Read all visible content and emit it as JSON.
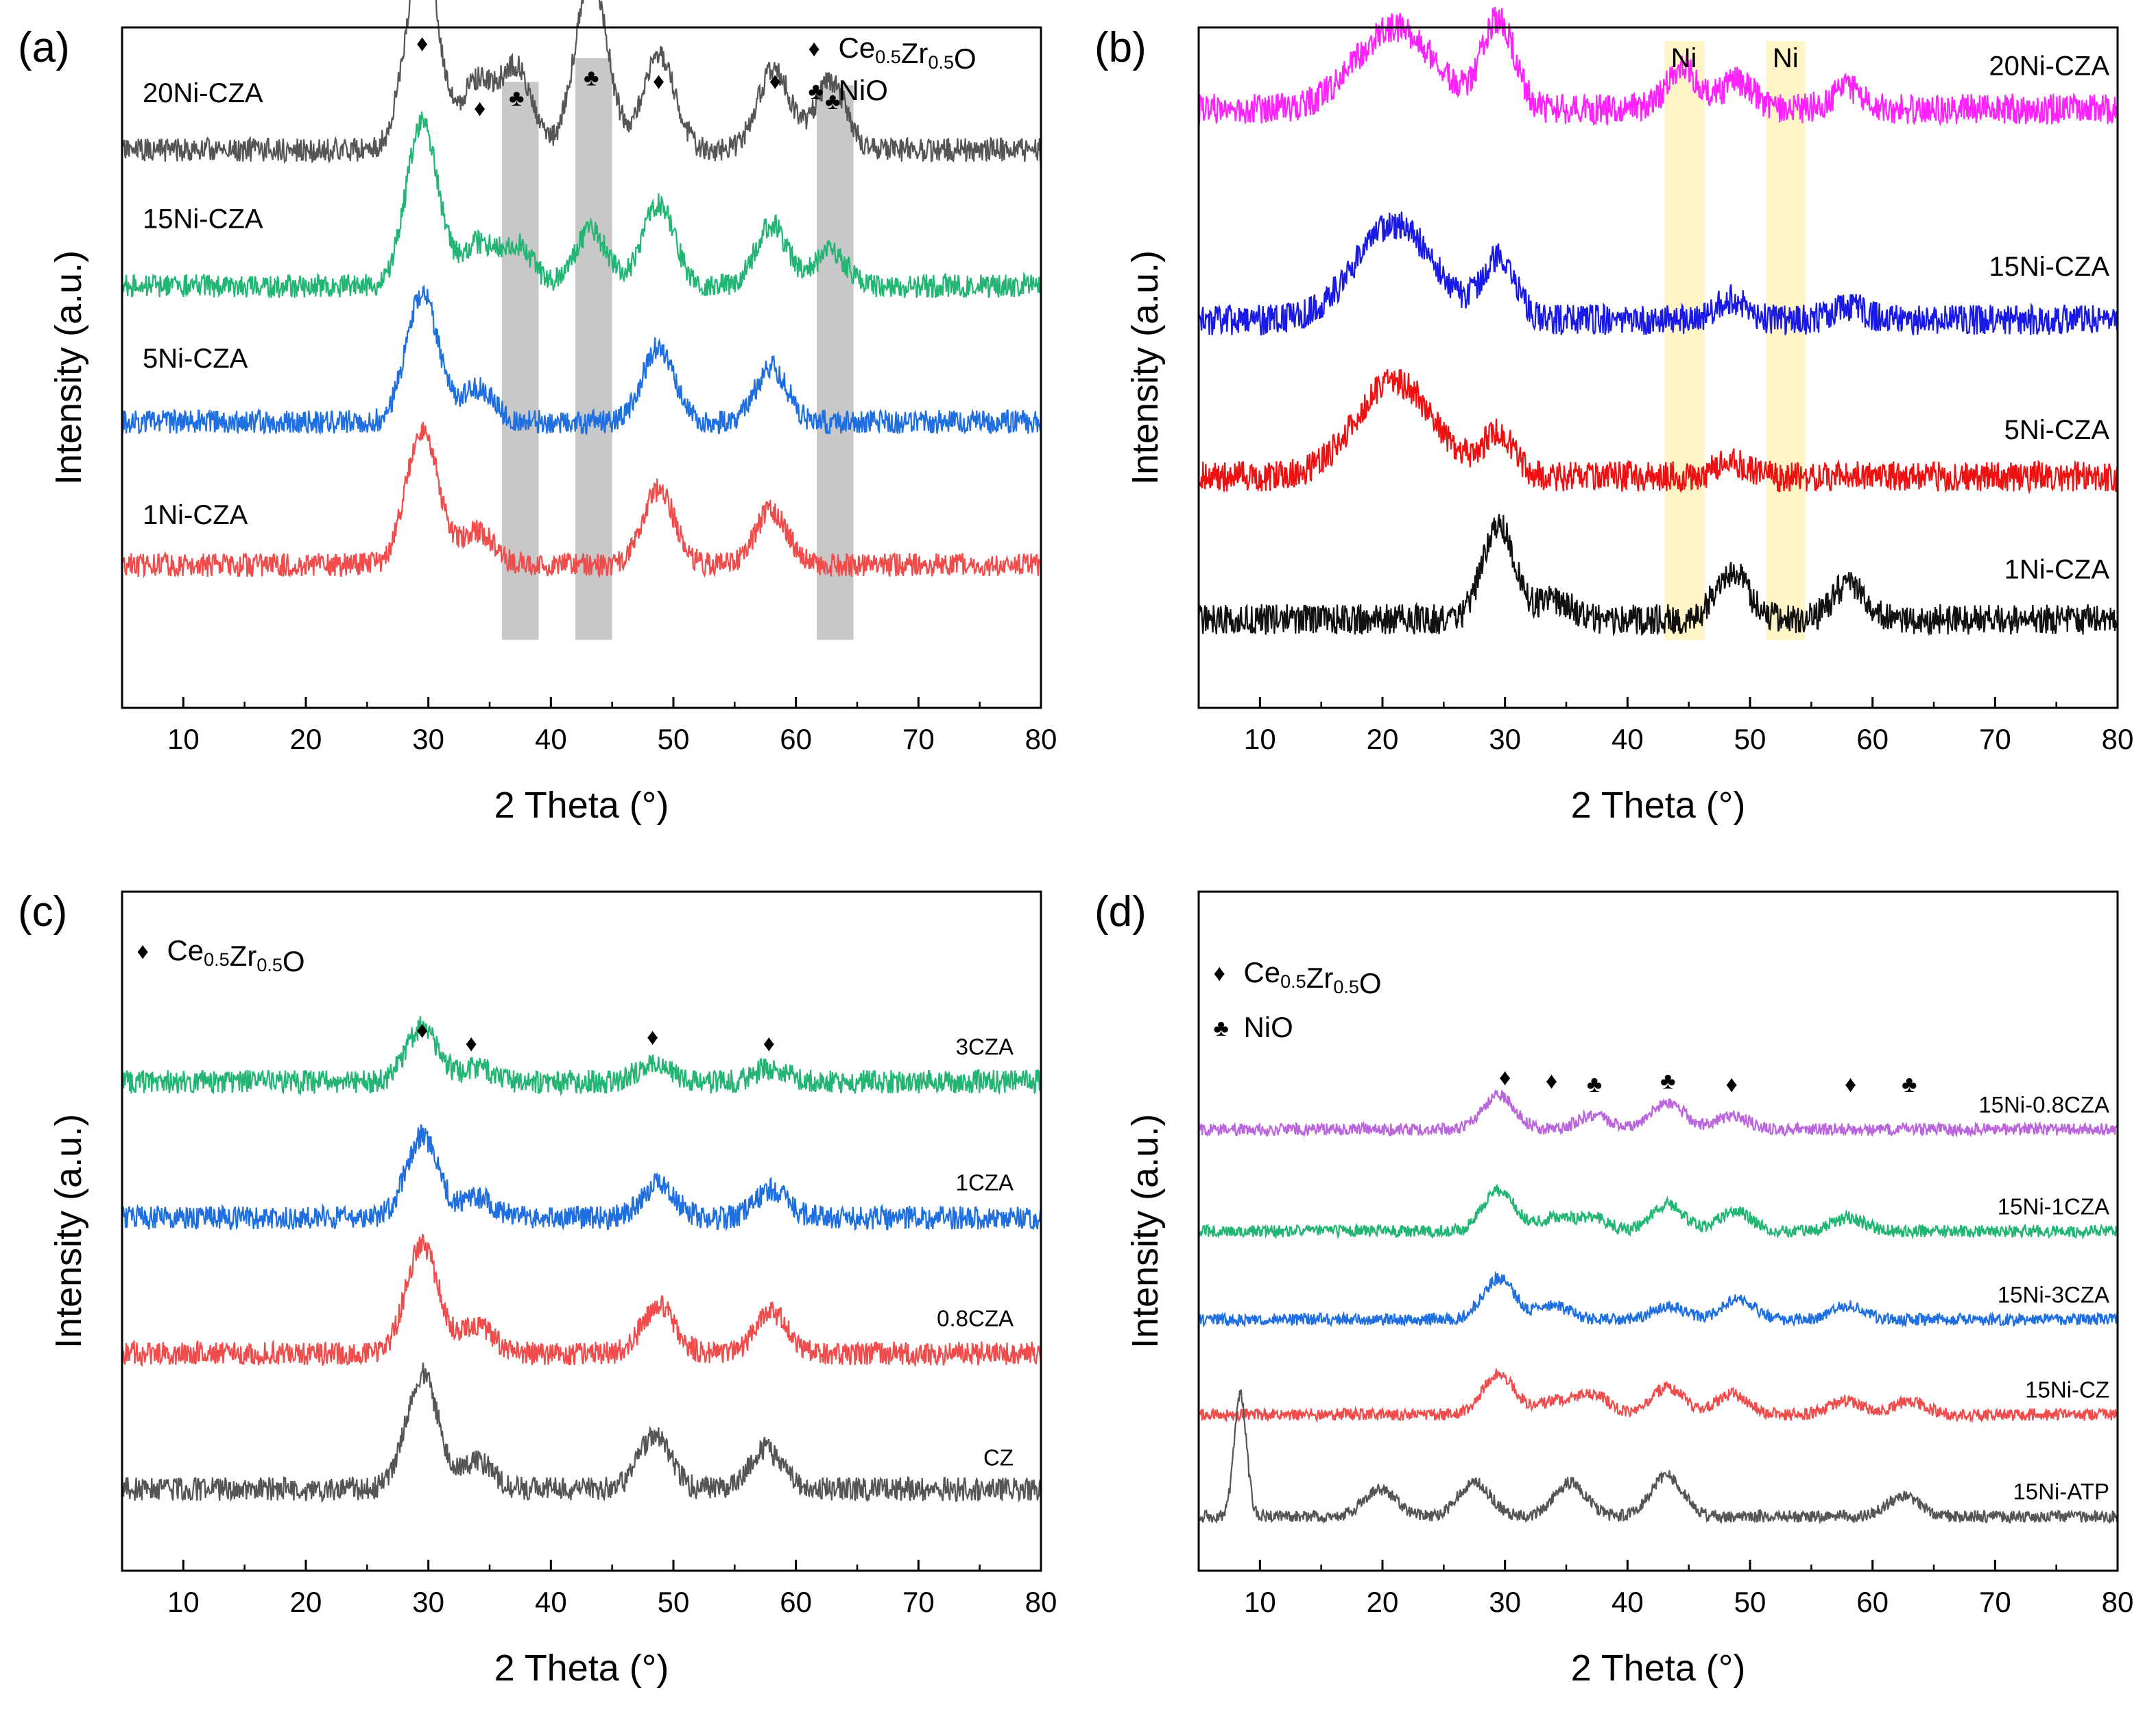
{
  "chart_data": [
    {
      "panel_label": "(a)",
      "type": "line",
      "xlabel": "2 Theta (°)",
      "ylabel": "Intensity (a.u.)",
      "xlim": [
        5,
        80
      ],
      "xticks": [
        "10",
        "20",
        "30",
        "40",
        "50",
        "60",
        "70",
        "80"
      ],
      "colors": {
        "20Ni-CZA": "#555555",
        "15Ni-CZA": "#22b573",
        "5Ni-CZA": "#1f6fe0",
        "1Ni-CZA": "#f04c4c"
      },
      "series": [
        {
          "name": "20Ni-CZA",
          "baseline": 0.18,
          "peaks": [
            [
              29.5,
              0.3
            ],
            [
              34,
              0.1
            ],
            [
              37.2,
              0.12
            ],
            [
              43.3,
              0.26
            ],
            [
              48.8,
              0.14
            ],
            [
              58.2,
              0.12
            ],
            [
              62.8,
              0.1
            ]
          ]
        },
        {
          "name": "15Ni-CZA",
          "baseline": 0.38,
          "peaks": [
            [
              29.5,
              0.24
            ],
            [
              34,
              0.06
            ],
            [
              37.2,
              0.06
            ],
            [
              43.3,
              0.08
            ],
            [
              48.8,
              0.12
            ],
            [
              58,
              0.09
            ],
            [
              62.8,
              0.05
            ]
          ]
        },
        {
          "name": "5Ni-CZA",
          "baseline": 0.58,
          "peaks": [
            [
              29.5,
              0.19
            ],
            [
              34,
              0.05
            ],
            [
              48.8,
              0.11
            ],
            [
              58,
              0.08
            ]
          ]
        },
        {
          "name": "1Ni-CZA",
          "baseline": 0.79,
          "peaks": [
            [
              29.5,
              0.2
            ],
            [
              34,
              0.05
            ],
            [
              48.8,
              0.11
            ],
            [
              58,
              0.08
            ]
          ]
        }
      ],
      "shaded_regions": [
        [
          36,
          39
        ],
        [
          42,
          45
        ],
        [
          61.7,
          64.7
        ]
      ],
      "legend": [
        {
          "symbol": "♦",
          "label_main": "Ce",
          "sub1": "0.5",
          "label_mid": "Zr",
          "sub2": "0.5",
          "label_end": "O"
        },
        {
          "symbol": "♣",
          "label": "NiO"
        }
      ],
      "markers": [
        {
          "symbol": "♦",
          "x": 29.5
        },
        {
          "symbol": "♦",
          "x": 34.2
        },
        {
          "symbol": "♣",
          "x": 37.2
        },
        {
          "symbol": "♣",
          "x": 43.3
        },
        {
          "symbol": "♦",
          "x": 48.8
        },
        {
          "symbol": "♦",
          "x": 58.3
        },
        {
          "symbol": "♣",
          "x": 63
        }
      ]
    },
    {
      "panel_label": "(b)",
      "type": "line",
      "xlabel": "2 Theta (°)",
      "ylabel": "Intensity (a.u.)",
      "xlim": [
        5,
        80
      ],
      "xticks": [
        "10",
        "20",
        "30",
        "40",
        "50",
        "60",
        "70",
        "80"
      ],
      "colors": {
        "20Ni-CZA": "#ff22ff",
        "15Ni-CZA": "#1a1ae6",
        "5Ni-CZA": "#ee1111",
        "1Ni-CZA": "#111111"
      },
      "series": [
        {
          "name": "20Ni-CZA",
          "baseline": 0.12,
          "peaks": [
            [
              21,
              0.12
            ],
            [
              29.5,
              0.13
            ],
            [
              44.5,
              0.06
            ],
            [
              49,
              0.04
            ],
            [
              58,
              0.03
            ]
          ]
        },
        {
          "name": "15Ni-CZA",
          "baseline": 0.43,
          "peaks": [
            [
              21,
              0.14
            ],
            [
              29.5,
              0.09
            ],
            [
              48.5,
              0.03
            ],
            [
              58,
              0.02
            ]
          ]
        },
        {
          "name": "5Ni-CZA",
          "baseline": 0.66,
          "peaks": [
            [
              21,
              0.14
            ],
            [
              29.5,
              0.06
            ],
            [
              48.5,
              0.02
            ]
          ]
        },
        {
          "name": "1Ni-CZA",
          "baseline": 0.87,
          "peaks": [
            [
              29.5,
              0.14
            ],
            [
              34,
              0.03
            ],
            [
              48.5,
              0.07
            ],
            [
              58,
              0.05
            ]
          ]
        }
      ],
      "shaded_regions": [
        [
          43,
          46.3
        ],
        [
          51.3,
          54.5
        ]
      ],
      "region_labels": [
        {
          "text": "Ni",
          "x": 44.6
        },
        {
          "text": "Ni",
          "x": 52.9
        }
      ]
    },
    {
      "panel_label": "(c)",
      "type": "line",
      "xlabel": "2 Theta (°)",
      "ylabel": "Intensity (a.u.)",
      "xlim": [
        5,
        80
      ],
      "xticks": [
        "10",
        "20",
        "30",
        "40",
        "50",
        "60",
        "70",
        "80"
      ],
      "colors": {
        "3CZA": "#22b573",
        "1CZA": "#1f6fe0",
        "0.8CZA": "#f04c4c",
        "CZ": "#555555"
      },
      "series": [
        {
          "name": "3CZA",
          "baseline": 0.28,
          "peaks": [
            [
              29.5,
              0.08
            ],
            [
              34,
              0.02
            ],
            [
              48.5,
              0.03
            ],
            [
              58,
              0.02
            ]
          ]
        },
        {
          "name": "1CZA",
          "baseline": 0.48,
          "peaks": [
            [
              29.5,
              0.12
            ],
            [
              34,
              0.03
            ],
            [
              48.8,
              0.05
            ],
            [
              58,
              0.04
            ]
          ]
        },
        {
          "name": "0.8CZA",
          "baseline": 0.68,
          "peaks": [
            [
              29.5,
              0.16
            ],
            [
              34,
              0.04
            ],
            [
              48.8,
              0.07
            ],
            [
              58,
              0.06
            ]
          ]
        },
        {
          "name": "CZ",
          "baseline": 0.88,
          "peaks": [
            [
              29.5,
              0.17
            ],
            [
              34,
              0.04
            ],
            [
              48.5,
              0.08
            ],
            [
              57.5,
              0.06
            ]
          ]
        }
      ],
      "legend": [
        {
          "symbol": "♦",
          "label_main": "Ce",
          "sub1": "0.5",
          "label_mid": "Zr",
          "sub2": "0.5",
          "label_end": "O"
        }
      ],
      "markers": [
        {
          "symbol": "♦",
          "x": 29.5
        },
        {
          "symbol": "♦",
          "x": 33.5
        },
        {
          "symbol": "♦",
          "x": 48.3
        },
        {
          "symbol": "♦",
          "x": 57.8
        }
      ]
    },
    {
      "panel_label": "(d)",
      "type": "line",
      "xlabel": "2 Theta (°)",
      "ylabel": "Intensity (a.u.)",
      "xlim": [
        5,
        80
      ],
      "xticks": [
        "10",
        "20",
        "30",
        "40",
        "50",
        "60",
        "70",
        "80"
      ],
      "colors": {
        "15Ni-0.8CZA": "#bb66dd",
        "15Ni-1CZA": "#22b573",
        "15Ni-3CZA": "#1f6fe0",
        "15Ni-CZ": "#f04c4c",
        "15Ni-ATP": "#555555"
      },
      "series": [
        {
          "name": "15Ni-0.8CZA",
          "baseline": 0.35,
          "peaks": [
            [
              29.5,
              0.05
            ],
            [
              37.2,
              0.02
            ],
            [
              43.3,
              0.04
            ],
            [
              48.5,
              0.02
            ]
          ]
        },
        {
          "name": "15Ni-1CZA",
          "baseline": 0.5,
          "peaks": [
            [
              29.5,
              0.06
            ],
            [
              34,
              0.02
            ],
            [
              37.2,
              0.02
            ],
            [
              43.3,
              0.04
            ],
            [
              48.8,
              0.03
            ],
            [
              58,
              0.02
            ]
          ]
        },
        {
          "name": "15Ni-3CZA",
          "baseline": 0.63,
          "peaks": [
            [
              29.5,
              0.06
            ],
            [
              34,
              0.02
            ],
            [
              43.3,
              0.02
            ],
            [
              49,
              0.03
            ],
            [
              58,
              0.02
            ]
          ]
        },
        {
          "name": "15Ni-CZ",
          "baseline": 0.77,
          "peaks": [
            [
              29.5,
              0.06
            ],
            [
              34,
              0.02
            ],
            [
              37.2,
              0.03
            ],
            [
              43.3,
              0.04
            ],
            [
              48.5,
              0.03
            ],
            [
              57.8,
              0.02
            ],
            [
              63,
              0.02
            ]
          ]
        },
        {
          "name": "15Ni-ATP",
          "baseline": 0.92,
          "peaks": [
            [
              8.4,
              0.18
            ],
            [
              19.8,
              0.04
            ],
            [
              27.5,
              0.05
            ],
            [
              35.3,
              0.05
            ],
            [
              43.2,
              0.06
            ],
            [
              62.5,
              0.03
            ]
          ]
        }
      ],
      "legend": [
        {
          "symbol": "♦",
          "label_main": "Ce",
          "sub1": "0.5",
          "label_mid": "Zr",
          "sub2": "0.5",
          "label_end": "O"
        },
        {
          "symbol": "♣",
          "label": "NiO"
        }
      ],
      "markers": [
        {
          "symbol": "♦",
          "x": 30
        },
        {
          "symbol": "♦",
          "x": 33.8
        },
        {
          "symbol": "♣",
          "x": 37.3
        },
        {
          "symbol": "♣",
          "x": 43.3
        },
        {
          "symbol": "♦",
          "x": 48.5
        },
        {
          "symbol": "♦",
          "x": 58.2
        },
        {
          "symbol": "♣",
          "x": 63
        }
      ]
    }
  ]
}
